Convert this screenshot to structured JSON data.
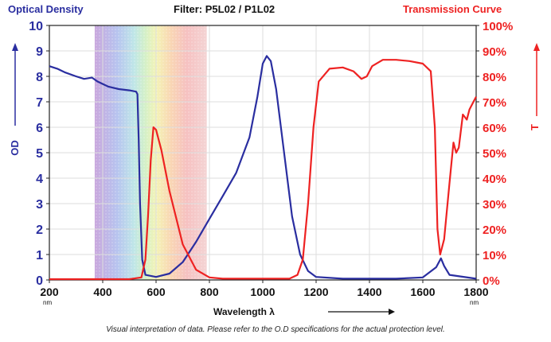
{
  "header": {
    "left_title": "Optical Density",
    "center_title": "Filter: P5L02 / P1L02",
    "right_title": "Transmission Curve"
  },
  "caption": "Visual interpretation of data. Please refer to the O.D specifications for the actual protection level.",
  "colors": {
    "od": "#2a2ea0",
    "transmission": "#ee2222",
    "axis": "#222222"
  },
  "chart_data": {
    "type": "line",
    "title": "Filter: P5L02 / P1L02",
    "xlabel": "Wavelength λ",
    "x_unit": "nm",
    "xlim": [
      200,
      1800
    ],
    "xticks": [
      200,
      400,
      600,
      800,
      1000,
      1200,
      1400,
      1600,
      1800
    ],
    "ylabel_left": "OD",
    "ylim_left": [
      0,
      10
    ],
    "yticks_left": [
      0,
      1,
      2,
      3,
      4,
      5,
      6,
      7,
      8,
      9,
      10
    ],
    "ylabel_right": "T",
    "ylim_right": [
      0,
      100
    ],
    "yticks_right": [
      "0%",
      "10%",
      "20%",
      "30%",
      "40%",
      "50%",
      "60%",
      "70%",
      "80%",
      "90%",
      "100%"
    ],
    "grid": true,
    "visible_spectrum_band": [
      370,
      790
    ],
    "series": [
      {
        "name": "Optical Density",
        "axis": "left",
        "color": "#2a2ea0",
        "points": [
          [
            200,
            8.4
          ],
          [
            230,
            8.3
          ],
          [
            260,
            8.15
          ],
          [
            300,
            8.0
          ],
          [
            330,
            7.9
          ],
          [
            360,
            7.95
          ],
          [
            380,
            7.8
          ],
          [
            420,
            7.6
          ],
          [
            460,
            7.5
          ],
          [
            500,
            7.45
          ],
          [
            525,
            7.4
          ],
          [
            530,
            7.3
          ],
          [
            535,
            5.5
          ],
          [
            540,
            3.0
          ],
          [
            548,
            0.8
          ],
          [
            560,
            0.2
          ],
          [
            600,
            0.12
          ],
          [
            650,
            0.25
          ],
          [
            700,
            0.7
          ],
          [
            750,
            1.5
          ],
          [
            800,
            2.4
          ],
          [
            850,
            3.3
          ],
          [
            900,
            4.2
          ],
          [
            950,
            5.6
          ],
          [
            980,
            7.2
          ],
          [
            1000,
            8.5
          ],
          [
            1015,
            8.8
          ],
          [
            1030,
            8.6
          ],
          [
            1050,
            7.5
          ],
          [
            1080,
            5.0
          ],
          [
            1110,
            2.5
          ],
          [
            1140,
            1.0
          ],
          [
            1170,
            0.35
          ],
          [
            1200,
            0.12
          ],
          [
            1300,
            0.05
          ],
          [
            1500,
            0.05
          ],
          [
            1600,
            0.1
          ],
          [
            1650,
            0.5
          ],
          [
            1668,
            0.85
          ],
          [
            1680,
            0.55
          ],
          [
            1700,
            0.2
          ],
          [
            1800,
            0.05
          ]
        ]
      },
      {
        "name": "Transmission Curve",
        "axis": "right",
        "color": "#ee2222",
        "points": [
          [
            200,
            0.3
          ],
          [
            500,
            0.3
          ],
          [
            545,
            1
          ],
          [
            560,
            8
          ],
          [
            570,
            25
          ],
          [
            580,
            47
          ],
          [
            590,
            60
          ],
          [
            600,
            59
          ],
          [
            620,
            51
          ],
          [
            650,
            35
          ],
          [
            700,
            14
          ],
          [
            750,
            4
          ],
          [
            800,
            1
          ],
          [
            850,
            0.5
          ],
          [
            1100,
            0.5
          ],
          [
            1130,
            2
          ],
          [
            1150,
            8
          ],
          [
            1170,
            30
          ],
          [
            1190,
            60
          ],
          [
            1210,
            78
          ],
          [
            1250,
            83
          ],
          [
            1300,
            83.5
          ],
          [
            1340,
            82
          ],
          [
            1370,
            79
          ],
          [
            1390,
            80
          ],
          [
            1410,
            84
          ],
          [
            1450,
            86.5
          ],
          [
            1500,
            86.5
          ],
          [
            1550,
            86
          ],
          [
            1600,
            85
          ],
          [
            1630,
            82
          ],
          [
            1645,
            60
          ],
          [
            1655,
            20
          ],
          [
            1665,
            10
          ],
          [
            1680,
            16
          ],
          [
            1700,
            38
          ],
          [
            1715,
            54
          ],
          [
            1725,
            50
          ],
          [
            1735,
            52
          ],
          [
            1750,
            65
          ],
          [
            1765,
            63
          ],
          [
            1775,
            67
          ],
          [
            1790,
            70
          ],
          [
            1800,
            72
          ]
        ]
      }
    ]
  }
}
